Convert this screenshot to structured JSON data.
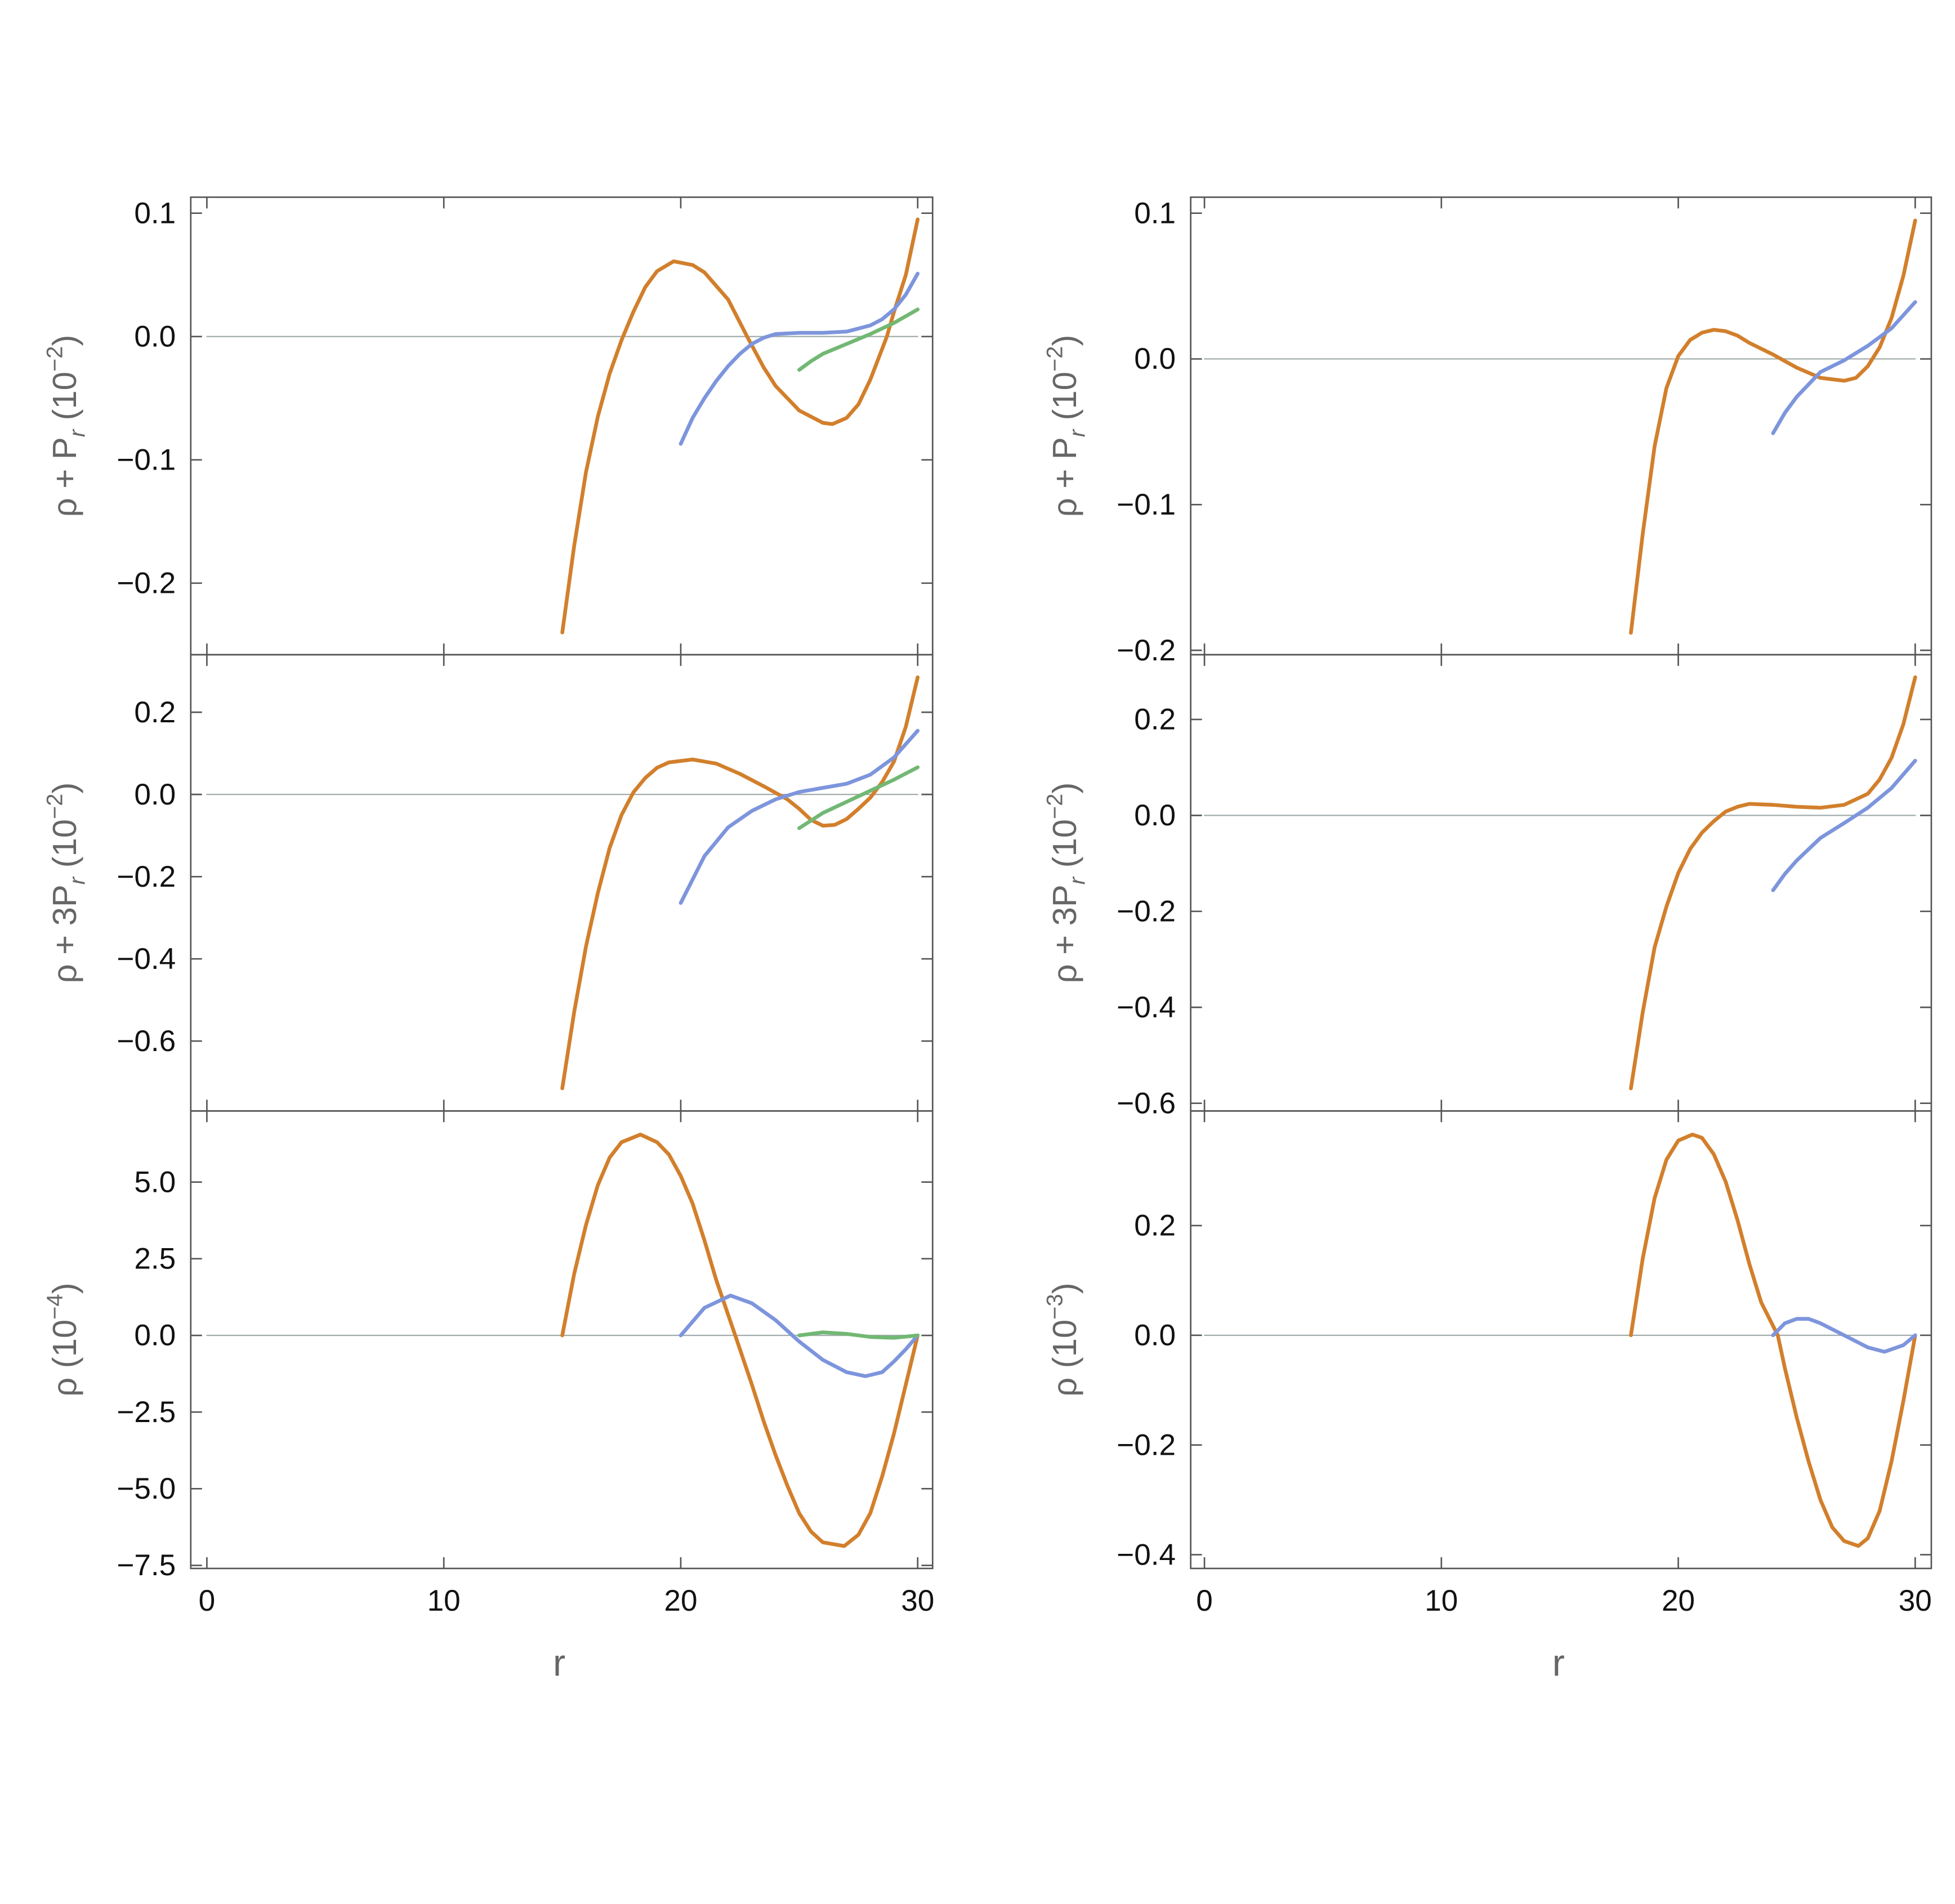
{
  "chart_data": [
    {
      "type": "line",
      "ylabel": [
        "ρ + P",
        {
          "sub": "r"
        },
        "  (10",
        {
          "sup": "−2"
        },
        ")"
      ],
      "xlim": [
        -0.68,
        30.63
      ],
      "xticks": [
        0,
        10,
        20,
        30
      ],
      "ylim": [
        -0.258,
        0.113
      ],
      "yticks": [
        0.1,
        {
          "value": 0,
          "label": "0.0"
        },
        {
          "value": -0.1,
          "label": "−0.1"
        },
        {
          "value": -0.2,
          "label": "−0.2"
        }
      ],
      "series": [
        {
          "color": "#a3adad",
          "x": [
            0,
            30
          ],
          "values": [
            0,
            0
          ]
        },
        {
          "color": "#d27f2c",
          "x": [
            15,
            15.5,
            16,
            16.5,
            17,
            17.5,
            18,
            18.5,
            19,
            19.7,
            20.5,
            21,
            22,
            22.8,
            23.5,
            24,
            25,
            26,
            26.4,
            27,
            27.5,
            28,
            28.7,
            29,
            29.5,
            30
          ],
          "values": [
            -0.24,
            -0.17,
            -0.11,
            -0.065,
            -0.03,
            -0.003,
            0.02,
            0.04,
            0.053,
            0.061,
            0.058,
            0.052,
            0.03,
            0,
            -0.025,
            -0.04,
            -0.06,
            -0.07,
            -0.071,
            -0.066,
            -0.055,
            -0.035,
            0,
            0.02,
            0.05,
            0.095
          ]
        },
        {
          "color": "#7d95dc",
          "x": [
            20,
            20.5,
            21,
            21.5,
            22,
            22.5,
            23,
            23.5,
            24,
            25,
            26,
            27,
            28,
            28.5,
            29,
            29.5,
            30
          ],
          "values": [
            -0.087,
            -0.066,
            -0.05,
            -0.036,
            -0.024,
            -0.014,
            -0.006,
            -0.001,
            0.002,
            0.003,
            0.003,
            0.004,
            0.009,
            0.014,
            0.022,
            0.034,
            0.051
          ]
        },
        {
          "color": "#72b874",
          "x": [
            25,
            25.5,
            26,
            27,
            28,
            29,
            30
          ],
          "values": [
            -0.027,
            -0.02,
            -0.014,
            -0.006,
            0.002,
            0.011,
            0.022
          ]
        }
      ]
    },
    {
      "type": "line",
      "ylabel": [
        "ρ + 3P",
        {
          "sub": "r"
        },
        "  (10",
        {
          "sup": "−2"
        },
        ")"
      ],
      "xlim": [
        -0.68,
        30.63
      ],
      "xticks": [
        0,
        10,
        20,
        30
      ],
      "ylim": [
        -0.77,
        0.34
      ],
      "yticks": [
        0.2,
        {
          "value": 0,
          "label": "0.0"
        },
        {
          "value": -0.2,
          "label": "−0.2"
        },
        {
          "value": -0.4,
          "label": "−0.4"
        },
        {
          "value": -0.6,
          "label": "−0.6"
        }
      ],
      "series": [
        {
          "color": "#a3adad",
          "x": [
            0,
            30
          ],
          "values": [
            0,
            0
          ]
        },
        {
          "color": "#d27f2c",
          "x": [
            15,
            15.5,
            16,
            16.5,
            17,
            17.5,
            18,
            18.5,
            19,
            19.5,
            20.5,
            21.5,
            22.5,
            23.5,
            24.5,
            25,
            25.5,
            26,
            26.5,
            27,
            27.5,
            28,
            28.5,
            29,
            29.5,
            30
          ],
          "values": [
            -0.715,
            -0.53,
            -0.37,
            -0.24,
            -0.13,
            -0.05,
            0.005,
            0.04,
            0.065,
            0.078,
            0.085,
            0.075,
            0.05,
            0.02,
            -0.012,
            -0.035,
            -0.062,
            -0.076,
            -0.074,
            -0.06,
            -0.035,
            -0.008,
            0.03,
            0.08,
            0.165,
            0.285
          ]
        },
        {
          "color": "#7d95dc",
          "x": [
            20,
            21,
            22,
            23,
            24,
            25,
            26,
            27,
            28,
            29,
            30
          ],
          "values": [
            -0.264,
            -0.15,
            -0.08,
            -0.04,
            -0.012,
            0.006,
            0.016,
            0.026,
            0.048,
            0.09,
            0.155
          ]
        },
        {
          "color": "#72b874",
          "x": [
            25,
            26,
            27,
            28,
            29,
            30
          ],
          "values": [
            -0.082,
            -0.045,
            -0.018,
            0.009,
            0.036,
            0.066
          ]
        }
      ]
    },
    {
      "type": "line",
      "ylabel": [
        "ρ (10",
        {
          "sup": "−4"
        },
        ")"
      ],
      "xlabel": "r",
      "xlim": [
        -0.68,
        30.63
      ],
      "xticks": [
        0,
        10,
        20,
        30
      ],
      "ylim": [
        -7.6,
        7.32
      ],
      "yticks": [
        {
          "value": 5,
          "label": "5.0"
        },
        2.5,
        {
          "value": 0,
          "label": "0.0"
        },
        {
          "value": -2.5,
          "label": "−2.5"
        },
        {
          "value": -5,
          "label": "−5.0"
        },
        {
          "value": -7.5,
          "label": "−7.5"
        }
      ],
      "series": [
        {
          "color": "#a3adad",
          "x": [
            0,
            30
          ],
          "values": [
            0,
            0
          ]
        },
        {
          "color": "#d27f2c",
          "x": [
            15,
            15.5,
            16,
            16.5,
            17,
            17.5,
            18.3,
            19,
            19.5,
            20,
            20.5,
            21,
            21.5,
            22.3,
            23,
            23.5,
            24,
            24.5,
            25,
            25.5,
            26,
            26.9,
            27.5,
            28,
            28.5,
            29,
            29.5,
            30
          ],
          "values": [
            0,
            2.0,
            3.6,
            4.9,
            5.8,
            6.3,
            6.55,
            6.3,
            5.9,
            5.2,
            4.3,
            3.1,
            1.8,
            0,
            -1.6,
            -2.8,
            -3.9,
            -4.9,
            -5.8,
            -6.4,
            -6.75,
            -6.87,
            -6.5,
            -5.8,
            -4.6,
            -3.2,
            -1.6,
            0
          ]
        },
        {
          "color": "#7d95dc",
          "x": [
            20,
            21,
            22.1,
            23,
            24,
            25,
            26,
            27,
            27.8,
            28.5,
            29,
            29.5,
            30
          ],
          "values": [
            0,
            0.9,
            1.3,
            1.05,
            0.5,
            -0.2,
            -0.8,
            -1.2,
            -1.33,
            -1.2,
            -0.85,
            -0.45,
            0
          ]
        },
        {
          "color": "#72b874",
          "x": [
            25,
            26,
            27,
            28,
            29,
            30
          ],
          "values": [
            0,
            0.1,
            0.05,
            -0.05,
            -0.08,
            0
          ]
        }
      ]
    },
    {
      "type": "line",
      "ylabel": [
        "ρ + P",
        {
          "sub": "r"
        },
        "  (10",
        {
          "sup": "−2"
        },
        ")"
      ],
      "xlim": [
        -0.58,
        30.68
      ],
      "xticks": [
        0,
        10,
        20,
        30
      ],
      "ylim": [
        -0.203,
        0.111
      ],
      "yticks": [
        0.1,
        {
          "value": 0,
          "label": "0.0"
        },
        {
          "value": -0.1,
          "label": "−0.1"
        },
        {
          "value": -0.2,
          "label": "−0.2"
        }
      ],
      "series": [
        {
          "color": "#a3adad",
          "x": [
            0,
            30
          ],
          "values": [
            0,
            0
          ]
        },
        {
          "color": "#d27f2c",
          "x": [
            18,
            18.5,
            19,
            19.5,
            20,
            20.5,
            21,
            21.5,
            22,
            22.5,
            23,
            24,
            25,
            26,
            27,
            27.5,
            28,
            28.5,
            29,
            29.5,
            30
          ],
          "values": [
            -0.188,
            -0.12,
            -0.06,
            -0.02,
            0.002,
            0.013,
            0.018,
            0.02,
            0.019,
            0.016,
            0.011,
            0.003,
            -0.006,
            -0.013,
            -0.015,
            -0.013,
            -0.005,
            0.008,
            0.028,
            0.057,
            0.095
          ]
        },
        {
          "color": "#7d95dc",
          "x": [
            24,
            24.5,
            25,
            26,
            27,
            28,
            29,
            30
          ],
          "values": [
            -0.051,
            -0.037,
            -0.026,
            -0.009,
            -0.001,
            0.009,
            0.021,
            0.039
          ]
        }
      ]
    },
    {
      "type": "line",
      "ylabel": [
        "ρ + 3P",
        {
          "sub": "r"
        },
        " (10",
        {
          "sup": "−2"
        },
        ")"
      ],
      "xlim": [
        -0.58,
        30.68
      ],
      "xticks": [
        0,
        10,
        20,
        30
      ],
      "ylim": [
        -0.616,
        0.335
      ],
      "yticks": [
        0.2,
        {
          "value": 0,
          "label": "0.0"
        },
        {
          "value": -0.2,
          "label": "−0.2"
        },
        {
          "value": -0.4,
          "label": "−0.4"
        },
        {
          "value": -0.6,
          "label": "−0.6"
        }
      ],
      "series": [
        {
          "color": "#a3adad",
          "x": [
            0,
            30
          ],
          "values": [
            0,
            0
          ]
        },
        {
          "color": "#d27f2c",
          "x": [
            18,
            18.5,
            19,
            19.5,
            20,
            20.5,
            21,
            21.5,
            22,
            22.5,
            23,
            24,
            25,
            26,
            27,
            28,
            28.5,
            29,
            29.5,
            30
          ],
          "values": [
            -0.569,
            -0.41,
            -0.275,
            -0.19,
            -0.12,
            -0.07,
            -0.036,
            -0.012,
            0.008,
            0.018,
            0.024,
            0.022,
            0.018,
            0.016,
            0.022,
            0.045,
            0.075,
            0.12,
            0.19,
            0.288
          ]
        },
        {
          "color": "#7d95dc",
          "x": [
            24,
            24.5,
            25,
            26,
            27,
            28,
            29,
            30
          ],
          "values": [
            -0.156,
            -0.122,
            -0.094,
            -0.047,
            -0.016,
            0.016,
            0.057,
            0.114
          ]
        }
      ]
    },
    {
      "type": "line",
      "ylabel": [
        "ρ (10",
        {
          "sup": "−3"
        },
        ")"
      ],
      "xlabel": "r",
      "xlim": [
        -0.58,
        30.68
      ],
      "xticks": [
        0,
        10,
        20,
        30
      ],
      "ylim": [
        -0.425,
        0.409
      ],
      "yticks": [
        0.2,
        {
          "value": 0,
          "label": "0.0"
        },
        {
          "value": -0.2,
          "label": "−0.2"
        },
        {
          "value": -0.4,
          "label": "−0.4"
        }
      ],
      "series": [
        {
          "color": "#a3adad",
          "x": [
            0,
            30
          ],
          "values": [
            0,
            0
          ]
        },
        {
          "color": "#d27f2c",
          "x": [
            18,
            18.5,
            19,
            19.5,
            20,
            20.6,
            21,
            21.5,
            22,
            22.5,
            23,
            23.5,
            24.2,
            24.5,
            25,
            25.5,
            26,
            26.5,
            27,
            27.6,
            28,
            28.5,
            29,
            29.5,
            30
          ],
          "values": [
            0,
            0.14,
            0.25,
            0.32,
            0.355,
            0.366,
            0.36,
            0.33,
            0.28,
            0.21,
            0.13,
            0.06,
            0,
            -0.06,
            -0.15,
            -0.23,
            -0.3,
            -0.35,
            -0.375,
            -0.384,
            -0.37,
            -0.32,
            -0.23,
            -0.12,
            0
          ]
        },
        {
          "color": "#7d95dc",
          "x": [
            24,
            24.5,
            25,
            25.5,
            26,
            27,
            28,
            28.7,
            29.5,
            30
          ],
          "values": [
            0,
            0.022,
            0.03,
            0.03,
            0.022,
            0,
            -0.022,
            -0.03,
            -0.018,
            0
          ]
        }
      ]
    }
  ]
}
